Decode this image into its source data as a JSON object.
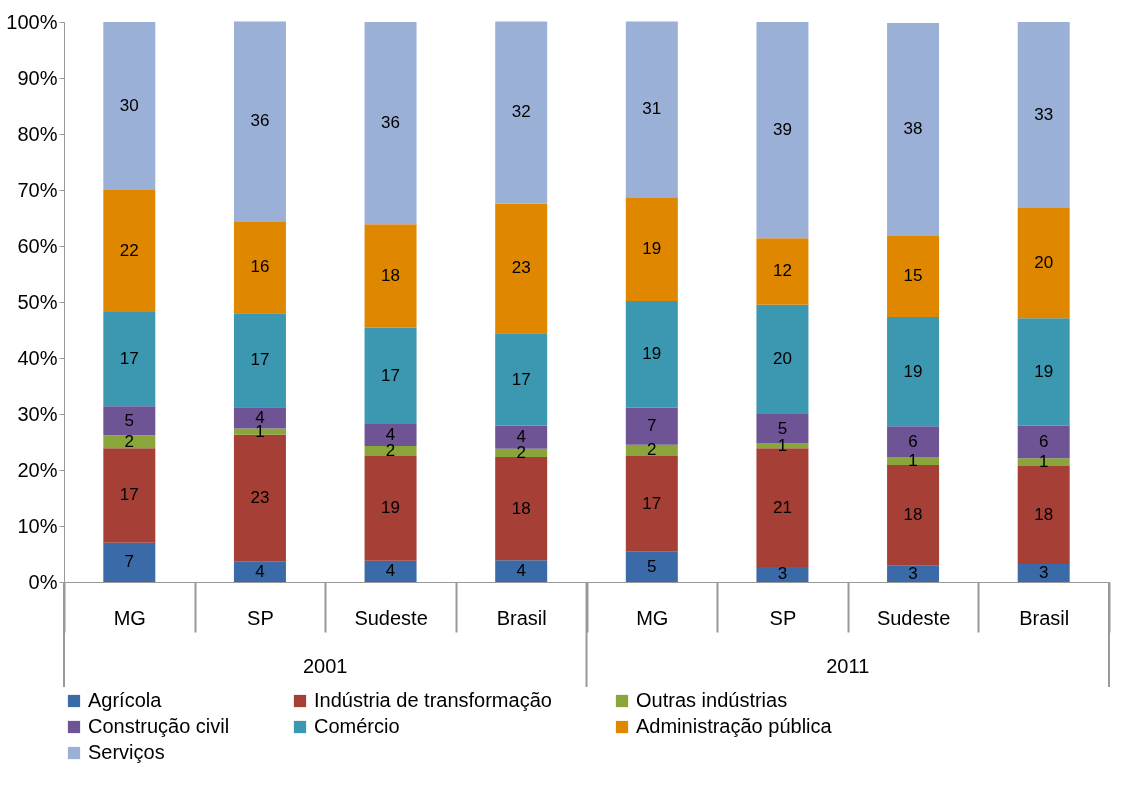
{
  "chart_data": {
    "type": "bar",
    "stacked": true,
    "categories": [
      "MG",
      "SP",
      "Sudeste",
      "Brasil",
      "MG",
      "SP",
      "Sudeste",
      "Brasil"
    ],
    "annotations": [
      "2001",
      "2011"
    ],
    "series": [
      {
        "name": "Agrícola",
        "color": "#3a6aa8",
        "values": [
          7.0,
          3.6,
          3.8,
          3.9,
          5.4,
          2.7,
          2.9,
          3.2
        ],
        "value_labels": [
          "7",
          "4",
          "4",
          "4",
          "5",
          "3",
          "3",
          "3"
        ]
      },
      {
        "name": "Indústria de transformação",
        "color": "#a63f36",
        "values": [
          16.9,
          22.7,
          18.7,
          18.4,
          17.1,
          21.2,
          18.0,
          17.5
        ],
        "value_labels": [
          "17",
          "23",
          "19",
          "18",
          "17",
          "21",
          "18",
          "18"
        ]
      },
      {
        "name": "Outras indústrias",
        "color": "#8aa53a",
        "values": [
          2.3,
          1.1,
          1.8,
          1.5,
          2.0,
          0.9,
          1.4,
          1.4
        ],
        "value_labels": [
          "2",
          "1",
          "2",
          "2",
          "2",
          "1",
          "1",
          "1"
        ]
      },
      {
        "name": "Construção civil",
        "color": "#6e5494",
        "values": [
          5.2,
          3.8,
          3.9,
          4.1,
          6.6,
          5.2,
          5.5,
          5.8
        ],
        "value_labels": [
          "5",
          "4",
          "4",
          "4",
          "7",
          "5",
          "6",
          "6"
        ]
      },
      {
        "name": "Comércio",
        "color": "#3c97b0",
        "values": [
          16.8,
          16.8,
          17.2,
          16.5,
          19.1,
          19.5,
          19.5,
          19.2
        ],
        "value_labels": [
          "17",
          "17",
          "17",
          "17",
          "19",
          "20",
          "19",
          "19"
        ]
      },
      {
        "name": "Administração pública",
        "color": "#e08700",
        "values": [
          21.8,
          16.4,
          18.5,
          23.2,
          18.5,
          11.9,
          14.6,
          19.7
        ],
        "value_labels": [
          "22",
          "16",
          "18",
          "23",
          "19",
          "12",
          "15",
          "20"
        ]
      },
      {
        "name": "Serviços",
        "color": "#9bb0d6",
        "values": [
          30.0,
          35.7,
          36.1,
          32.5,
          31.4,
          38.6,
          37.9,
          33.2
        ],
        "value_labels": [
          "30",
          "36",
          "36",
          "32",
          "31",
          "39",
          "38",
          "33"
        ]
      }
    ],
    "ylim": [
      0,
      100
    ],
    "yticks": [
      {
        "value": 0,
        "label": "0%"
      },
      {
        "value": 10,
        "label": "10%"
      },
      {
        "value": 20,
        "label": "20%"
      },
      {
        "value": 30,
        "label": "30%"
      },
      {
        "value": 40,
        "label": "40%"
      },
      {
        "value": 50,
        "label": "50%"
      },
      {
        "value": 60,
        "label": "60%"
      },
      {
        "value": 70,
        "label": "70%"
      },
      {
        "value": 80,
        "label": "80%"
      },
      {
        "value": 90,
        "label": "90%"
      },
      {
        "value": 100,
        "label": "100%"
      }
    ],
    "grid": false,
    "legend": "bottom"
  }
}
